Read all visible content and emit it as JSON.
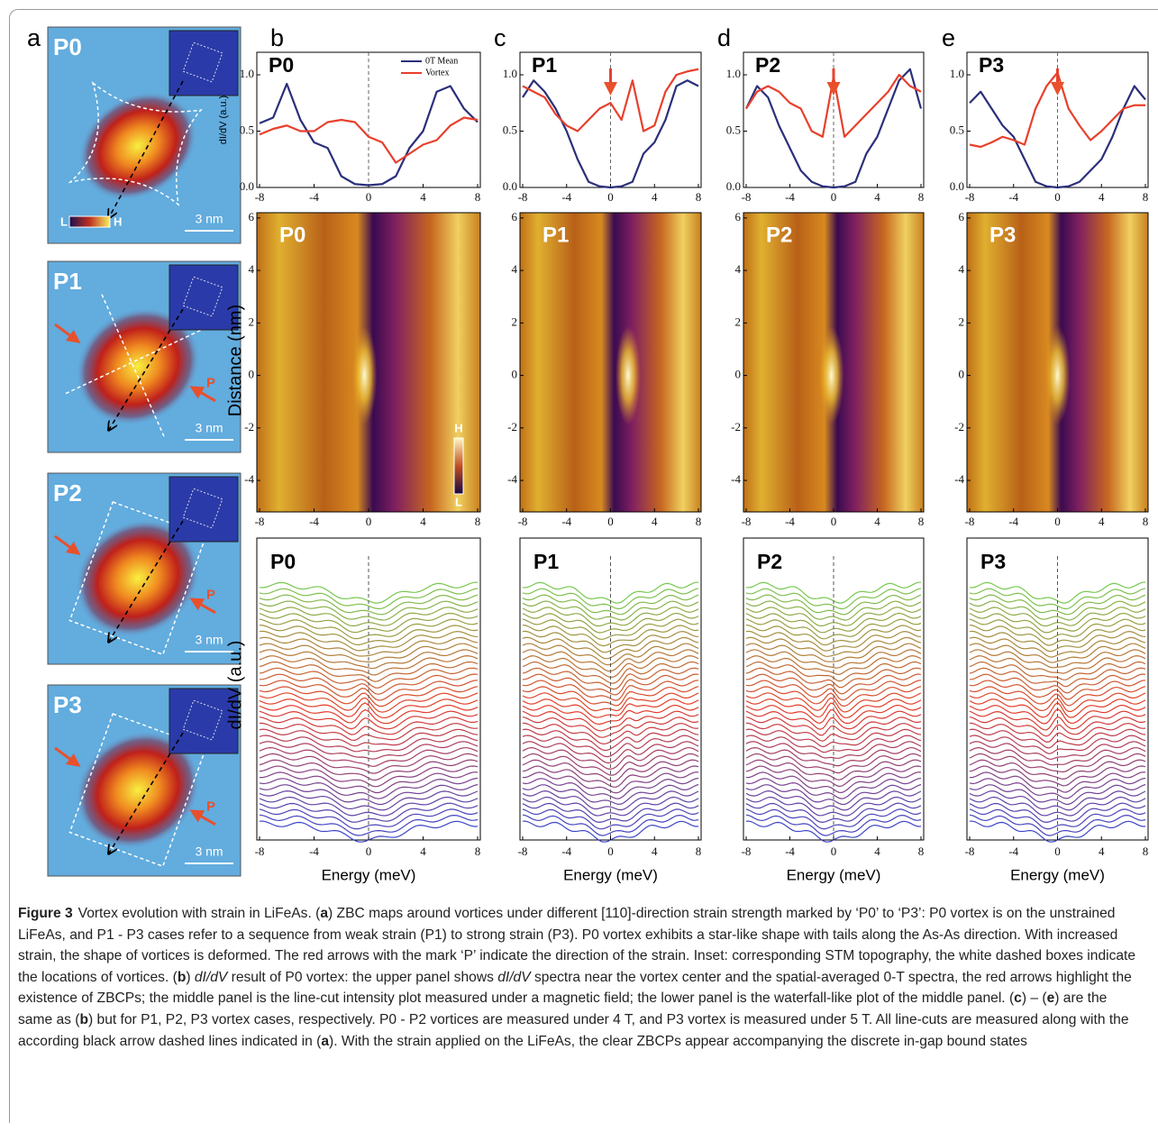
{
  "figure": {
    "panel_labels": [
      "a",
      "b",
      "c",
      "d",
      "e"
    ],
    "maps": [
      {
        "tag": "P0",
        "scale_bar": "3 nm",
        "colorbar": {
          "low": "L",
          "high": "H"
        }
      },
      {
        "tag": "P1",
        "scale_bar": "3 nm",
        "strain_mark": "P"
      },
      {
        "tag": "P2",
        "scale_bar": "3 nm",
        "strain_mark": "P"
      },
      {
        "tag": "P3",
        "scale_bar": "3 nm",
        "strain_mark": "P"
      }
    ],
    "distance_label": "Distance (nm)",
    "waterfall_ylabel": "dI/dV (a.u.)",
    "linecuts": [
      {
        "tag": "P0",
        "xlim": [
          -8,
          8
        ],
        "xticks": [
          -8,
          -4,
          0,
          4,
          8
        ],
        "ylim": [
          -5.2,
          6.2
        ],
        "yticks": [
          -4,
          -2,
          0,
          2,
          4,
          6
        ],
        "colorbar": {
          "high": "H",
          "low": "L"
        }
      },
      {
        "tag": "P1",
        "xlim": [
          -8,
          8
        ],
        "xticks": [
          -8,
          -4,
          0,
          4,
          8
        ],
        "ylim": [
          -5.2,
          6.2
        ],
        "yticks": [
          -4,
          -2,
          0,
          2,
          4,
          6
        ]
      },
      {
        "tag": "P2",
        "xlim": [
          -8,
          8
        ],
        "xticks": [
          -8,
          -4,
          0,
          4,
          8
        ],
        "ylim": [
          -5.2,
          6.2
        ],
        "yticks": [
          -4,
          -2,
          0,
          2,
          4,
          6
        ]
      },
      {
        "tag": "P3",
        "xlim": [
          -8,
          8
        ],
        "xticks": [
          -8,
          -4,
          0,
          4,
          8
        ],
        "ylim": [
          -5.2,
          6.2
        ],
        "yticks": [
          -4,
          -2,
          0,
          2,
          4,
          6
        ]
      }
    ],
    "waterfalls": [
      {
        "tag": "P0",
        "xlim": [
          -8,
          8
        ],
        "xticks": [
          -8,
          -4,
          0,
          4,
          8
        ],
        "xlabel": "Energy (meV)"
      },
      {
        "tag": "P1",
        "xlim": [
          -8,
          8
        ],
        "xticks": [
          -8,
          -4,
          0,
          4,
          8
        ],
        "xlabel": "Energy (meV)"
      },
      {
        "tag": "P2",
        "xlim": [
          -8,
          8
        ],
        "xticks": [
          -8,
          -4,
          0,
          4,
          8
        ],
        "xlabel": "Energy (meV)"
      },
      {
        "tag": "P3",
        "xlim": [
          -8,
          8
        ],
        "xticks": [
          -8,
          -4,
          0,
          4,
          8
        ],
        "xlabel": "Energy (meV)"
      }
    ]
  },
  "chart_data": [
    {
      "type": "line",
      "title": "P0",
      "ylabel": "dI/dV (a.u.)",
      "x": [
        -8,
        -7,
        -6,
        -5,
        -4,
        -3,
        -2,
        -1,
        0,
        1,
        2,
        3,
        4,
        5,
        6,
        7,
        8
      ],
      "series": [
        {
          "name": "0T Mean",
          "color": "#2b2f7a",
          "values": [
            0.57,
            0.62,
            0.92,
            0.6,
            0.4,
            0.35,
            0.1,
            0.03,
            0.02,
            0.03,
            0.1,
            0.35,
            0.5,
            0.85,
            0.9,
            0.7,
            0.58
          ]
        },
        {
          "name": "Vortex",
          "color": "#e8402c",
          "values": [
            0.47,
            0.52,
            0.55,
            0.5,
            0.5,
            0.58,
            0.6,
            0.58,
            0.45,
            0.4,
            0.22,
            0.3,
            0.38,
            0.42,
            0.55,
            0.62,
            0.6
          ]
        }
      ],
      "xlim": [
        -8,
        8
      ],
      "xticks": [
        -8,
        -4,
        0,
        4,
        8
      ],
      "ylim": [
        0,
        1.2
      ],
      "yticks": [
        {
          "value": 0,
          "label": "0.0"
        },
        {
          "value": 0.5,
          "label": "0.5"
        },
        {
          "value": 1,
          "label": "1.0"
        }
      ]
    },
    {
      "type": "line",
      "title": "P1",
      "x": [
        -8,
        -7,
        -6,
        -5,
        -4,
        -3,
        -2,
        -1,
        0,
        1,
        2,
        3,
        4,
        5,
        6,
        7,
        8
      ],
      "series": [
        {
          "color": "#2b2f7a",
          "values": [
            0.8,
            0.95,
            0.85,
            0.7,
            0.5,
            0.25,
            0.05,
            0.01,
            0,
            0.01,
            0.05,
            0.3,
            0.4,
            0.6,
            0.9,
            0.95,
            0.9
          ]
        },
        {
          "color": "#e8402c",
          "values": [
            0.9,
            0.85,
            0.8,
            0.65,
            0.55,
            0.5,
            0.6,
            0.7,
            0.75,
            0.6,
            0.95,
            0.5,
            0.55,
            0.85,
            1.0,
            1.03,
            1.05
          ]
        }
      ],
      "xlim": [
        -8,
        8
      ],
      "xticks": [
        -8,
        -4,
        0,
        4,
        8
      ],
      "ylim": [
        0,
        1.2
      ],
      "yticks": [
        {
          "value": 0,
          "label": "0.0"
        },
        {
          "value": 0.5,
          "label": "0.5"
        },
        {
          "value": 1,
          "label": "1.0"
        }
      ]
    },
    {
      "type": "line",
      "title": "P2",
      "x": [
        -8,
        -7,
        -6,
        -5,
        -4,
        -3,
        -2,
        -1,
        0,
        1,
        2,
        3,
        4,
        5,
        6,
        7,
        8
      ],
      "series": [
        {
          "color": "#2b2f7a",
          "values": [
            0.7,
            0.9,
            0.8,
            0.55,
            0.35,
            0.15,
            0.05,
            0.01,
            0,
            0.01,
            0.05,
            0.3,
            0.45,
            0.7,
            0.95,
            1.05,
            0.7
          ]
        },
        {
          "color": "#e8402c",
          "values": [
            0.7,
            0.85,
            0.9,
            0.85,
            0.75,
            0.7,
            0.5,
            0.45,
            0.98,
            0.45,
            0.55,
            0.65,
            0.75,
            0.85,
            1.0,
            0.9,
            0.85
          ]
        }
      ],
      "xlim": [
        -8,
        8
      ],
      "xticks": [
        -8,
        -4,
        0,
        4,
        8
      ],
      "ylim": [
        0,
        1.2
      ],
      "yticks": [
        {
          "value": 0,
          "label": "0.0"
        },
        {
          "value": 0.5,
          "label": "0.5"
        },
        {
          "value": 1,
          "label": "1.0"
        }
      ]
    },
    {
      "type": "line",
      "title": "P3",
      "x": [
        -8,
        -7,
        -6,
        -5,
        -4,
        -3,
        -2,
        -1,
        0,
        1,
        2,
        3,
        4,
        5,
        6,
        7,
        8
      ],
      "series": [
        {
          "color": "#2b2f7a",
          "values": [
            0.75,
            0.85,
            0.7,
            0.55,
            0.45,
            0.25,
            0.05,
            0.01,
            0,
            0.01,
            0.05,
            0.15,
            0.25,
            0.45,
            0.7,
            0.9,
            0.78
          ]
        },
        {
          "color": "#e8402c",
          "values": [
            0.38,
            0.36,
            0.4,
            0.45,
            0.42,
            0.38,
            0.7,
            0.9,
            1.02,
            0.7,
            0.55,
            0.42,
            0.5,
            0.6,
            0.7,
            0.73,
            0.73
          ]
        }
      ],
      "xlim": [
        -8,
        8
      ],
      "xticks": [
        -8,
        -4,
        0,
        4,
        8
      ],
      "ylim": [
        0,
        1.2
      ],
      "yticks": [
        {
          "value": 0,
          "label": "0.0"
        },
        {
          "value": 0.5,
          "label": "0.5"
        },
        {
          "value": 1,
          "label": "1.0"
        }
      ]
    }
  ],
  "caption": {
    "label": "Figure 3",
    "runs": [
      {
        "t": "Vortex evolution with strain in LiFeAs. ("
      },
      {
        "t": "a",
        "b": true
      },
      {
        "t": ") ZBC maps around vortices under different [110]-direction strain strength marked by ‘P0’ to ‘P3’: P0 vortex is on the unstrained LiFeAs, and P1 - P3 cases refer to a sequence from weak strain (P1) to strong strain (P3). P0 vortex exhibits a star-like shape with tails along the As-As direction. With increased strain, the shape of vortices is deformed. The red arrows with the mark ‘P’ indicate the direction of the strain. Inset: corresponding STM topography, the white dashed boxes indicate the locations of vortices. ("
      },
      {
        "t": "b",
        "b": true
      },
      {
        "t": ") "
      },
      {
        "t": "dI/dV",
        "i": true
      },
      {
        "t": " result of P0 vortex: the upper panel shows "
      },
      {
        "t": "dI/dV",
        "i": true
      },
      {
        "t": " spectra near the vortex center and the spatial-averaged 0-T spectra, the red arrows highlight the existence of ZBCPs; the middle panel is the line-cut intensity plot measured under a magnetic field; the lower panel is the waterfall-like plot of the middle panel. ("
      },
      {
        "t": "c",
        "b": true
      },
      {
        "t": ") – ("
      },
      {
        "t": "e",
        "b": true
      },
      {
        "t": ") are the same as ("
      },
      {
        "t": "b",
        "b": true
      },
      {
        "t": ") but for P1, P2, P3 vortex cases, respectively. P0 - P2 vortices are measured under 4 T, and P3 vortex is measured under 5 T. All line-cuts are measured along with the according black arrow dashed lines indicated in ("
      },
      {
        "t": "a",
        "b": true
      },
      {
        "t": "). With the strain applied on the LiFeAs, the clear ZBCPs appear accompanying the discrete in-gap bound states"
      }
    ]
  }
}
